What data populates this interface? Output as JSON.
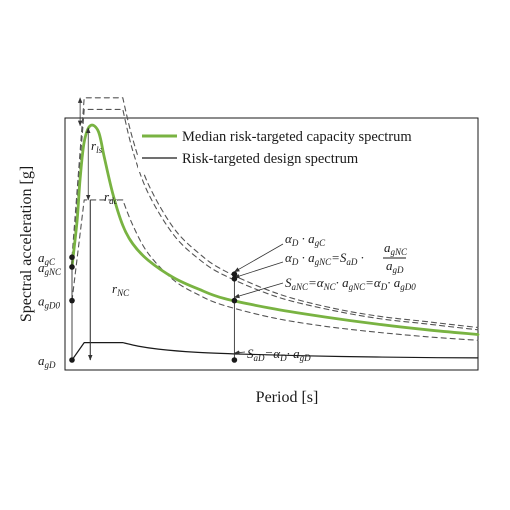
{
  "chart_data": {
    "type": "line",
    "xlabel": "Period [s]",
    "ylabel": "Spectral acceleration [g]",
    "xlim": [
      0,
      4
    ],
    "ylim": [
      0,
      1
    ],
    "grid": false,
    "legend_position": "top-right",
    "tick_labels": [
      {
        "main": "a",
        "sub": "gC",
        "y": 0.443
      },
      {
        "main": "a",
        "sub": "gNC",
        "y": 0.401
      },
      {
        "main": "a",
        "sub": "gD0",
        "y": 0.256
      },
      {
        "main": "a",
        "sub": "gD",
        "y": 0.0
      }
    ],
    "series": [
      {
        "name": "Median risk-targeted capacity spectrum",
        "color": "#79b342",
        "style": "solid",
        "x": [
          0.0,
          0.05,
          0.08,
          0.12,
          0.18,
          0.26,
          0.32,
          0.4,
          0.5,
          0.6,
          0.75,
          1.0,
          1.25,
          1.5,
          2.0,
          2.5,
          3.0,
          3.5,
          4.0
        ],
        "y": [
          0.401,
          0.6,
          0.78,
          0.94,
          1.01,
          0.985,
          0.87,
          0.72,
          0.58,
          0.5,
          0.43,
          0.355,
          0.305,
          0.265,
          0.22,
          0.185,
          0.155,
          0.13,
          0.11
        ]
      },
      {
        "name": "Risk-targeted design spectrum",
        "color": "#1a1a1a",
        "style": "solid",
        "x": [
          0.0,
          0.12,
          0.5,
          0.65,
          0.85,
          1.2,
          1.7,
          2.3,
          3.0,
          3.6,
          4.0
        ],
        "y": [
          0.0,
          0.075,
          0.075,
          0.06,
          0.047,
          0.034,
          0.025,
          0.018,
          0.013,
          0.01,
          0.009
        ]
      },
      {
        "style": "dashed",
        "color": "#555555",
        "x": [
          0.0,
          0.12,
          0.5,
          0.6,
          0.75,
          1.0,
          1.25,
          1.5,
          2.0,
          2.5,
          3.0,
          3.5,
          4.0
        ],
        "y": [
          0.443,
          1.13,
          1.13,
          0.95,
          0.76,
          0.57,
          0.46,
          0.385,
          0.29,
          0.23,
          0.19,
          0.165,
          0.14
        ]
      },
      {
        "style": "dashed",
        "color": "#555555",
        "x": [
          0.0,
          0.12,
          0.5,
          0.6,
          0.75,
          1.0,
          1.25,
          1.5,
          2.0,
          2.5,
          3.0,
          3.5,
          4.0
        ],
        "y": [
          0.401,
          1.08,
          1.08,
          0.9,
          0.72,
          0.54,
          0.435,
          0.365,
          0.275,
          0.22,
          0.18,
          0.155,
          0.13
        ]
      },
      {
        "style": "dashed",
        "color": "#555555",
        "x": [
          0.0,
          0.12,
          0.5,
          0.6,
          0.75,
          1.0,
          1.25,
          1.5,
          2.0,
          2.5,
          3.0,
          3.5,
          4.0
        ],
        "y": [
          0.256,
          0.69,
          0.69,
          0.58,
          0.46,
          0.345,
          0.28,
          0.235,
          0.18,
          0.145,
          0.12,
          0.1,
          0.085
        ]
      }
    ],
    "annotations": [
      {
        "id": "r_ls",
        "main": "r",
        "sub": "ls"
      },
      {
        "id": "r_dc",
        "main": "r",
        "sub": "dc"
      },
      {
        "id": "r_NC",
        "main": "r",
        "sub": "NC"
      },
      {
        "id": "alpha_agC",
        "text": "αD · agC"
      },
      {
        "id": "alpha_agNC",
        "text": "αD · agNC = SaD · agNC / agD"
      },
      {
        "id": "SaNC",
        "text": "SaNC = αNC · agNC = αD · agD0"
      },
      {
        "id": "SaD",
        "text": "SaD = αD · agD"
      }
    ]
  },
  "legend": {
    "capacity_label": "Median risk-targeted capacity spectrum",
    "design_label": "Risk-targeted design spectrum"
  }
}
